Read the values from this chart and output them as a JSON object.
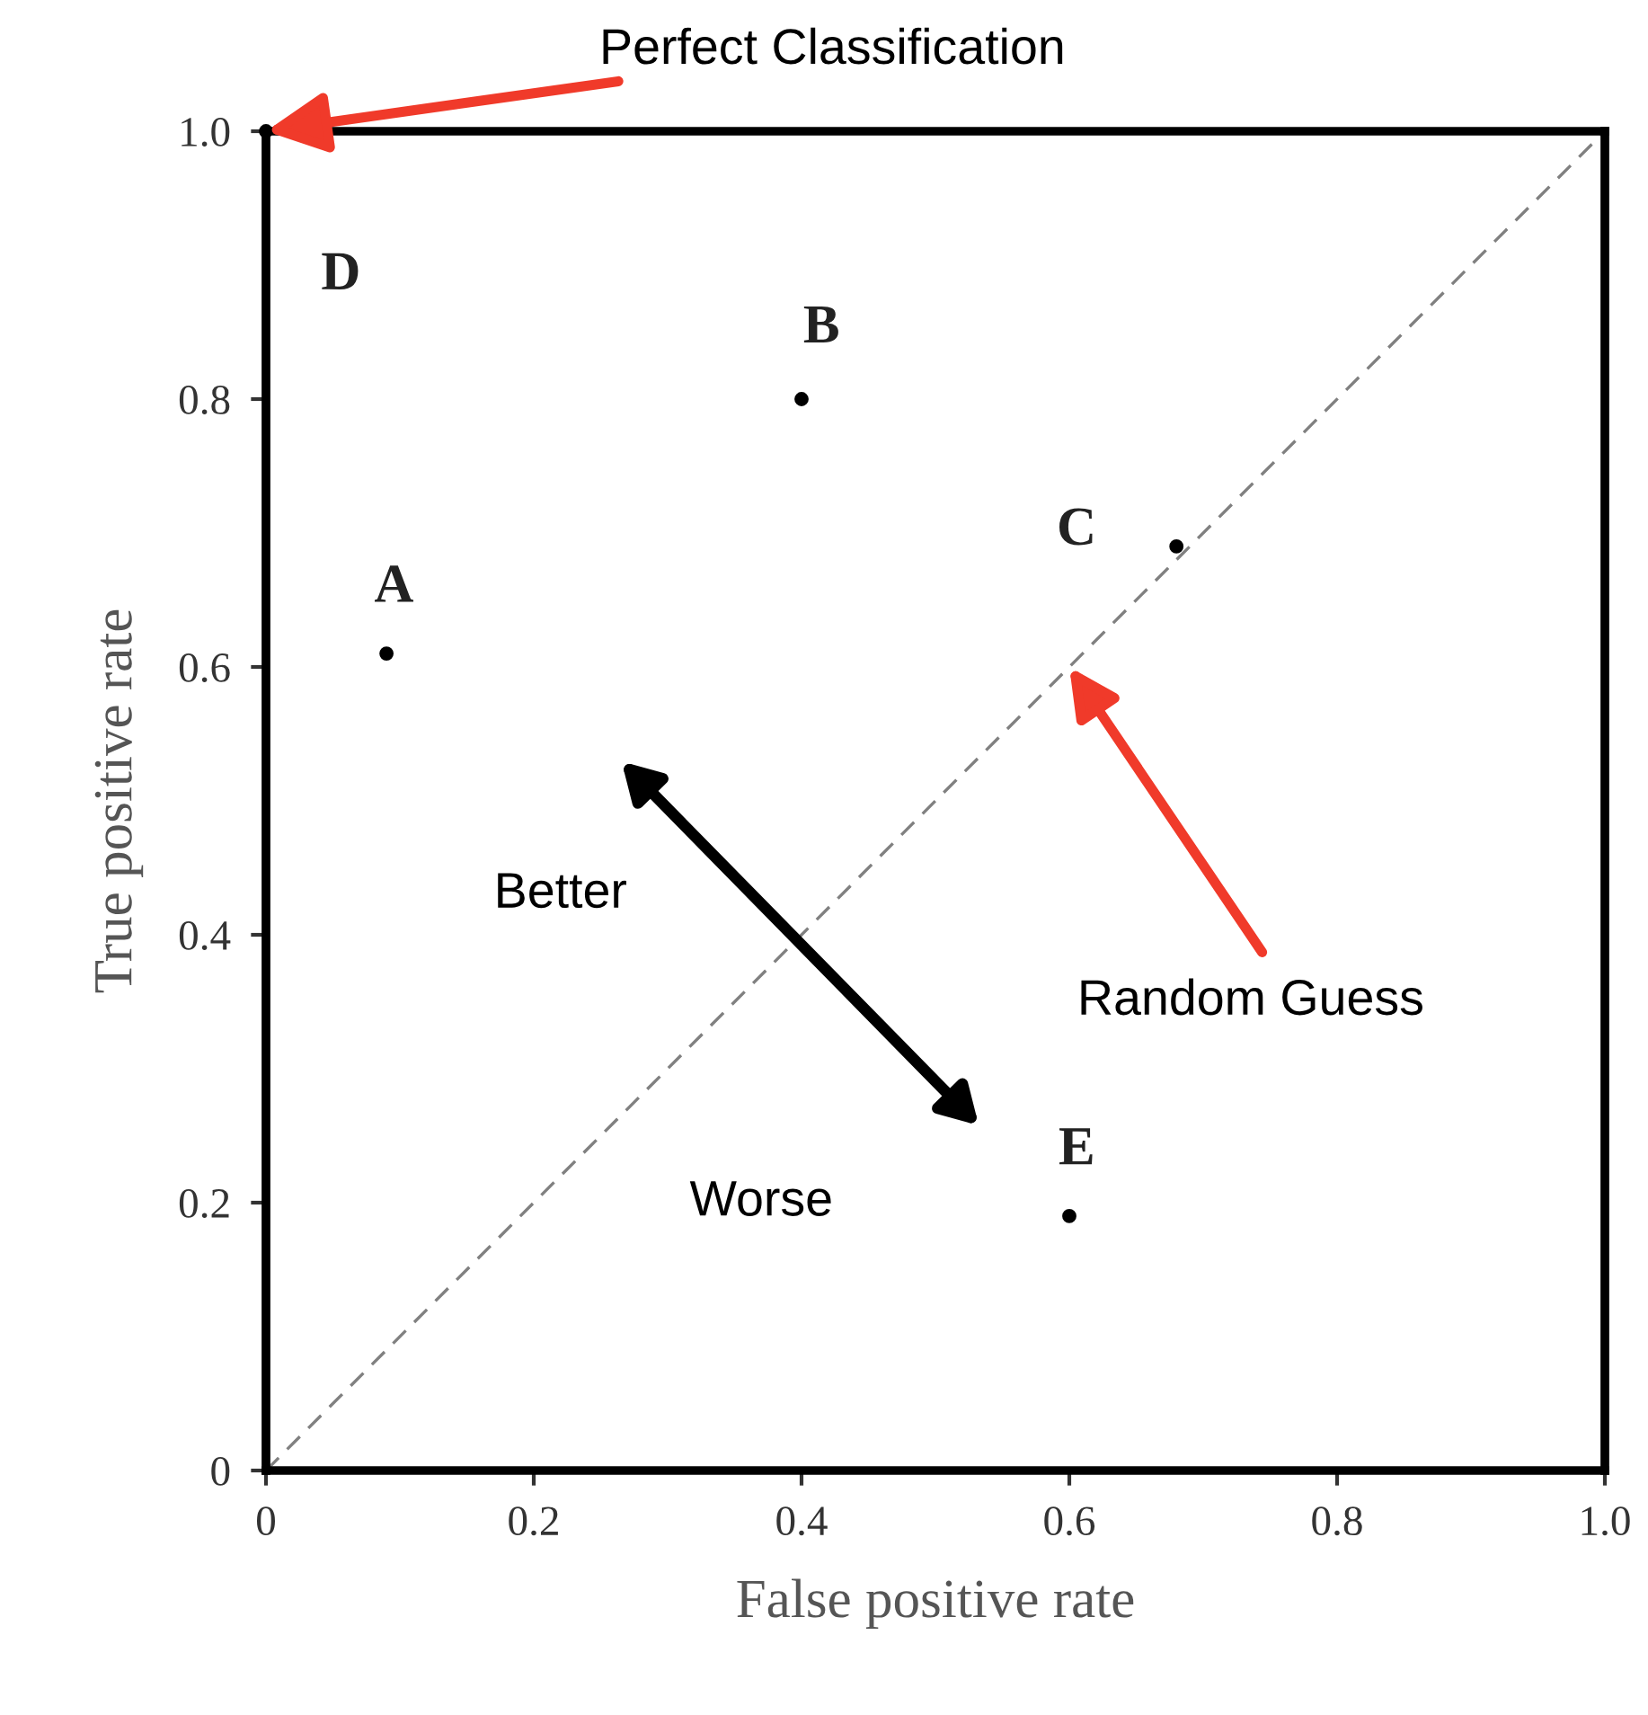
{
  "chart_data": {
    "type": "scatter",
    "xlabel": "False positive rate",
    "ylabel": "True positive rate",
    "xlim": [
      0,
      1.0
    ],
    "ylim": [
      0,
      1.0
    ],
    "xticks": [
      0,
      0.2,
      0.4,
      0.6,
      0.8,
      {
        "value": 1.0,
        "label": "1.0"
      }
    ],
    "yticks": [
      0,
      0.2,
      0.4,
      0.6,
      0.8,
      {
        "value": 1.0,
        "label": "1.0"
      }
    ],
    "grid": false,
    "marker": "circle",
    "series": [
      {
        "color": "#000000",
        "x": [
          0.09,
          0.4,
          0.68,
          0.0,
          0.6
        ],
        "values": [
          0.61,
          0.8,
          0.69,
          1.0,
          0.19
        ]
      },
      {
        "type": "line",
        "color": "#808080",
        "line_style": "dashed",
        "marker": "none",
        "x": [
          0,
          1.0
        ],
        "values": [
          0,
          1.0
        ]
      }
    ],
    "annotations": [
      {
        "text": "A",
        "x": 0.09,
        "y": 0.61
      },
      {
        "text": "B",
        "x": 0.4,
        "y": 0.8
      },
      {
        "text": "C",
        "x": 0.68,
        "y": 0.69
      },
      {
        "text": "D",
        "x": 0.0,
        "y": 1.0
      },
      {
        "text": "E",
        "x": 0.6,
        "y": 0.19
      },
      {
        "text": "Perfect Classification",
        "x": 0,
        "y": 1.0
      },
      "Random Guess",
      "Better",
      "Worse"
    ]
  }
}
